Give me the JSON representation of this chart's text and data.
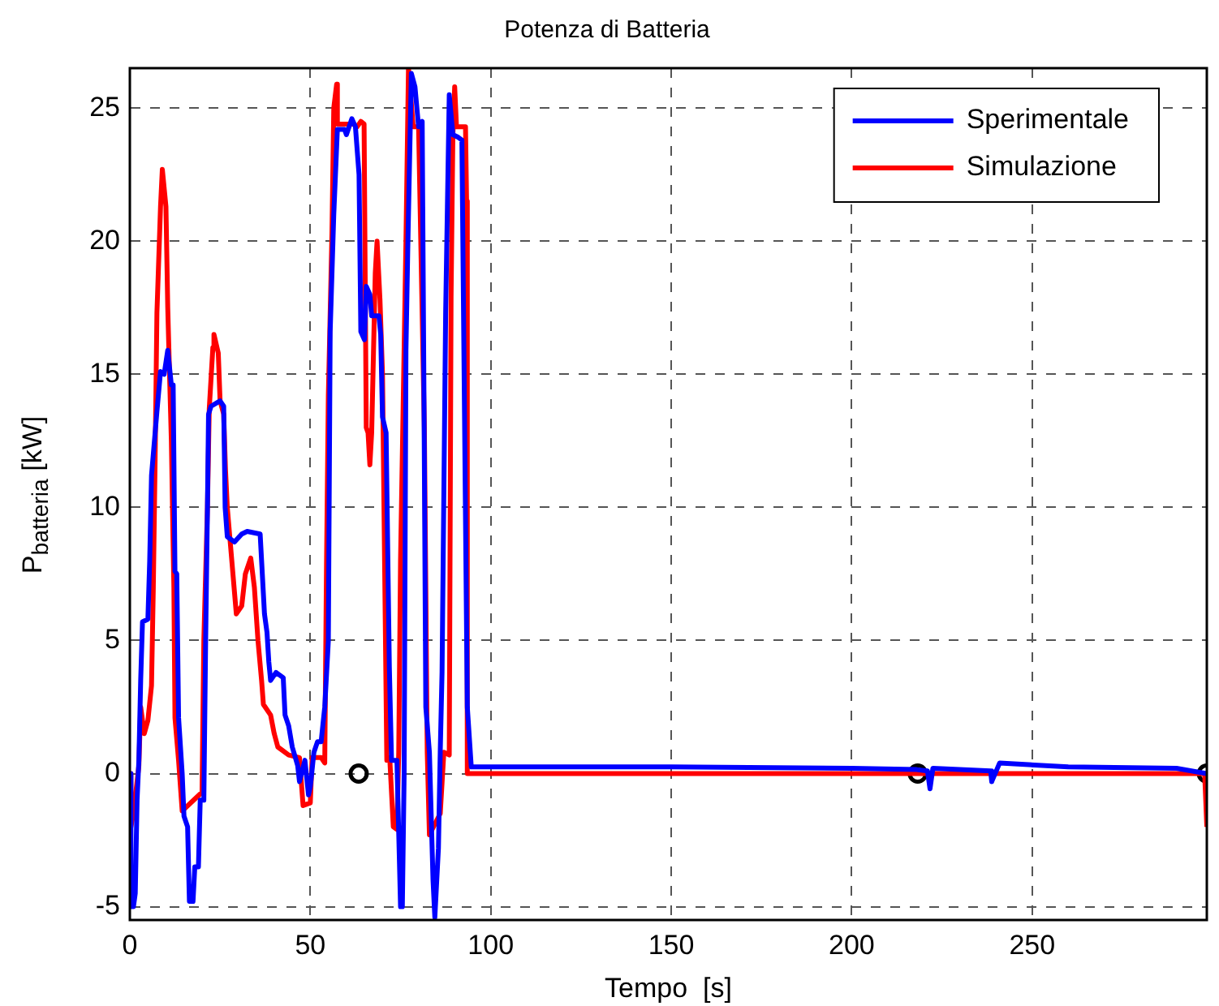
{
  "chart_data": {
    "type": "line",
    "title": "Potenza di Batteria",
    "xlabel": "Tempo  [s]",
    "ylabel": "P$_{batteria}$  [kW]",
    "xlim": [
      0,
      298.4
    ],
    "xticks": [
      0,
      50,
      100,
      150,
      200,
      250
    ],
    "ylim": [
      -5.5,
      26.5
    ],
    "yticks": [
      -5,
      0,
      5,
      10,
      15,
      20,
      25
    ],
    "grid": true,
    "legend": "top right",
    "marker": "none",
    "series": [
      {
        "name": "Sperimentale",
        "color": "#0000ff",
        "x": [
          0,
          0.3,
          1,
          1.5,
          2,
          2.5,
          3,
          3.5,
          5,
          5.5,
          6,
          7.5,
          8.5,
          9.5,
          10.5,
          11.5,
          12,
          12.5,
          13,
          13.5,
          14.5,
          15,
          16,
          16.5,
          17.5,
          18,
          19,
          19.5,
          20.5,
          21,
          21.5,
          21.8,
          22.5,
          25,
          26,
          26.4,
          27,
          29,
          31,
          32.5,
          36.1,
          37.3,
          38,
          38.5,
          39,
          40.5,
          42.5,
          43,
          44,
          45,
          46.5,
          47,
          48.5,
          49.5,
          50,
          51,
          52,
          53,
          54,
          55,
          55.5,
          56.5,
          57.5,
          59.5,
          60,
          61.5,
          62.5,
          63,
          63.5,
          64,
          65,
          65.5,
          66.5,
          67,
          69,
          69.5,
          70,
          71,
          71.9,
          72.5,
          74,
          75,
          75.5,
          76,
          76.5,
          77,
          78,
          79,
          80,
          81,
          81.5,
          82,
          83,
          84,
          84.5,
          85.5,
          86,
          86.5,
          87.5,
          88.5,
          89.5,
          91,
          92,
          93.5,
          94.6,
          150,
          200,
          218,
          221,
          221.7,
          222.5,
          238.5,
          238.8,
          241,
          260,
          290,
          298.4
        ],
        "values": [
          0,
          -5,
          -5,
          -4.5,
          -1,
          0.5,
          3.5,
          5.7,
          5.8,
          8,
          11.2,
          13.6,
          15.1,
          15,
          15.9,
          14.6,
          14.6,
          7.6,
          7.5,
          2.1,
          0,
          -1.6,
          -2,
          -4.8,
          -4.8,
          -3.5,
          -3.5,
          -1,
          -1,
          5,
          10,
          13.5,
          13.8,
          14,
          13.8,
          10,
          8.9,
          8.7,
          9,
          9.1,
          9,
          6,
          5.3,
          4.2,
          3.5,
          3.8,
          3.6,
          2.2,
          1.8,
          1,
          0.3,
          -0.3,
          0.5,
          -0.8,
          -0.5,
          0.8,
          1.2,
          1.2,
          2.5,
          5,
          16.6,
          21,
          24.2,
          24.2,
          24,
          24.6,
          24.3,
          23.4,
          22.5,
          16.6,
          16.3,
          18.3,
          18,
          17.2,
          17.2,
          16.5,
          13.4,
          12.8,
          4,
          0.5,
          0.5,
          -5,
          -5,
          0,
          15.9,
          19.7,
          26.3,
          25.8,
          24.3,
          24.5,
          14,
          2.5,
          0.8,
          -4,
          -5.4,
          -2.8,
          0.8,
          3.8,
          17.3,
          25.5,
          24,
          23.9,
          23.8,
          2.5,
          0.25,
          0.25,
          0.2,
          0.15,
          0.1,
          -0.57,
          0.2,
          0.1,
          -0.3,
          0.4,
          0.25,
          0.2,
          0
        ]
      },
      {
        "name": "Simulazione",
        "color": "#ff0000",
        "x": [
          0,
          0.3,
          1,
          2.5,
          3,
          4,
          5,
          6,
          6.5,
          7,
          7.5,
          8.5,
          9,
          10,
          10.5,
          11.5,
          12.2,
          12.5,
          13.5,
          14.5,
          20,
          20.5,
          21.5,
          22,
          23,
          23.3,
          24.5,
          25,
          26,
          26.5,
          27,
          28.5,
          29.5,
          31,
          32,
          33.5,
          34.5,
          35.5,
          36.5,
          37,
          39,
          40,
          41,
          42,
          44,
          47,
          48,
          50,
          50.5,
          53,
          54,
          54.5,
          55,
          56,
          56.5,
          57.3,
          57.5,
          62,
          63,
          64,
          64.9,
          65.5,
          66,
          66.5,
          67,
          67.5,
          68,
          68.5,
          69.3,
          70,
          71.2,
          72,
          73,
          74,
          74.5,
          75,
          76.5,
          77.2,
          78.5,
          80,
          81.6,
          82.4,
          83,
          86,
          87,
          88.5,
          89,
          89.5,
          90,
          90.5,
          93,
          93.3,
          93.5,
          297.8,
          298.4
        ],
        "values": [
          0,
          -2,
          -1.5,
          0.3,
          2.5,
          1.5,
          2,
          3.3,
          7,
          11.8,
          17.3,
          21.3,
          22.7,
          21.3,
          17.5,
          12.5,
          7,
          2.1,
          0.5,
          -1.4,
          -0.7,
          5,
          10,
          13.7,
          16,
          16.5,
          15.8,
          14,
          13.5,
          11.4,
          10,
          7.6,
          6,
          6.3,
          7.5,
          8.1,
          7,
          5,
          3.5,
          2.6,
          2.2,
          1.5,
          1,
          0.9,
          0.7,
          0.6,
          -1.2,
          -1.1,
          0.6,
          0.6,
          0.4,
          8,
          14.2,
          20.3,
          25,
          25.9,
          24.4,
          24.4,
          24.3,
          24.5,
          24.4,
          13,
          12.8,
          11.6,
          12.8,
          15.8,
          18.8,
          20,
          17.8,
          15,
          0.5,
          0.6,
          -2,
          -2.1,
          0.8,
          8,
          20,
          26.5,
          24.3,
          24.3,
          13,
          0.8,
          -2.3,
          -1.5,
          0.8,
          0.7,
          17.9,
          24,
          25.8,
          24.3,
          24.3,
          21.5,
          0,
          0,
          -2
        ]
      },
      {
        "type": "scatter",
        "marker": "circle",
        "color": "#000000",
        "x": [
          63.4,
          218.3,
          298.4
        ],
        "values": [
          0,
          0,
          0
        ]
      }
    ]
  }
}
